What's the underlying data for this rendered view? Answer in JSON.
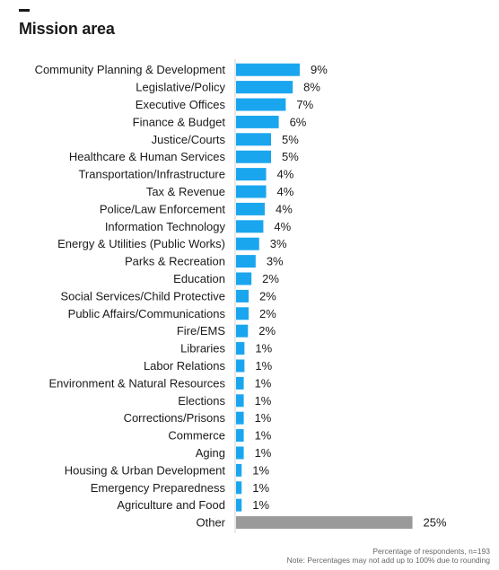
{
  "header": {
    "title": "Mission area"
  },
  "footer": {
    "line1": "Percentage of respondents, n=193",
    "line2": "Note: Percentages may not add up to 100% due to rounding"
  },
  "colors": {
    "bar": "#1aa6ef",
    "other_bar": "#9a9a9a",
    "axis": "#d0d0d0"
  },
  "chart_data": {
    "type": "bar",
    "orientation": "horizontal",
    "title": "Mission area",
    "xlabel": "",
    "ylabel": "",
    "xlim": [
      0,
      25
    ],
    "grid": false,
    "categories": [
      "Community Planning & Development",
      "Legislative/Policy",
      "Executive Offices",
      "Finance & Budget",
      "Justice/Courts",
      "Healthcare & Human Services",
      "Transportation/Infrastructure",
      "Tax & Revenue",
      "Police/Law Enforcement",
      "Information Technology",
      "Energy & Utilities (Public Works)",
      "Parks & Recreation",
      "Education",
      "Social Services/Child Protective",
      "Public Affairs/Communications",
      "Fire/EMS",
      "Libraries",
      "Labor Relations",
      "Environment & Natural Resources",
      "Elections",
      "Corrections/Prisons",
      "Commerce",
      "Aging",
      "Housing & Urban Development",
      "Emergency Preparedness",
      "Agriculture and Food",
      "Other"
    ],
    "values": [
      9.1,
      8.1,
      7.1,
      6.1,
      5.0,
      5.0,
      4.3,
      4.3,
      4.1,
      3.9,
      3.3,
      2.8,
      2.2,
      1.8,
      1.8,
      1.7,
      1.2,
      1.2,
      1.1,
      1.1,
      1.1,
      1.1,
      1.1,
      0.8,
      0.8,
      0.8,
      25.2
    ],
    "value_labels": [
      "9%",
      "8%",
      "7%",
      "6%",
      "5%",
      "5%",
      "4%",
      "4%",
      "4%",
      "4%",
      "3%",
      "3%",
      "2%",
      "2%",
      "2%",
      "2%",
      "1%",
      "1%",
      "1%",
      "1%",
      "1%",
      "1%",
      "1%",
      "1%",
      "1%",
      "1%",
      "25%"
    ]
  }
}
